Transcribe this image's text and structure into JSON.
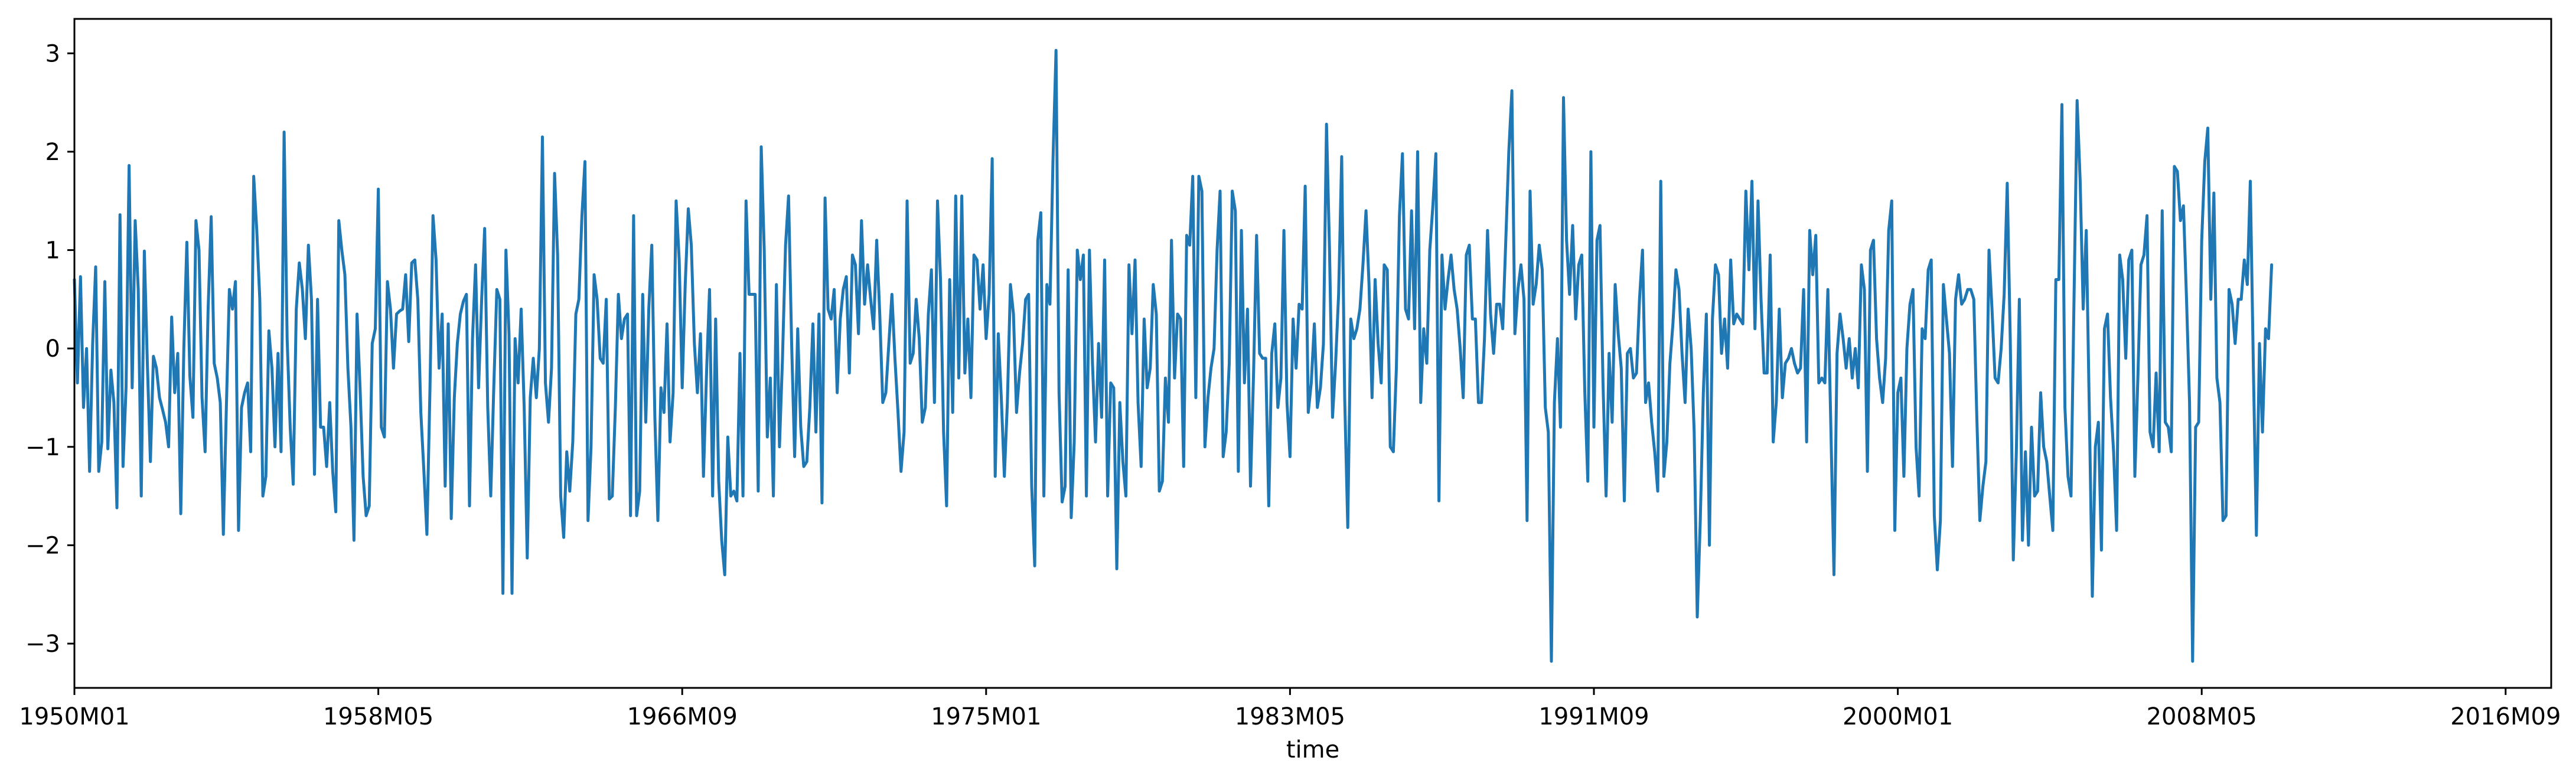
{
  "chart_data": {
    "type": "line",
    "title": "",
    "xlabel": "time",
    "ylabel": "",
    "xlim": [
      "1950M01",
      "2017M12"
    ],
    "ylim": [
      -3.45,
      3.35
    ],
    "grid": false,
    "legend": "none",
    "x_ticks": [
      "1950M01",
      "1958M05",
      "1966M09",
      "1975M01",
      "1983M05",
      "1991M09",
      "2000M01",
      "2008M05",
      "2016M09"
    ],
    "y_ticks": [
      "3",
      "2",
      "1",
      "0",
      "−1",
      "−2",
      "−3"
    ],
    "colors": {
      "line": "#1f77b4",
      "axes": "#000000",
      "background": "#ffffff"
    },
    "series": [
      {
        "frequency": "monthly",
        "start": "1950M01",
        "values": [
          0.7,
          -0.35,
          0.73,
          -0.6,
          0.0,
          -1.25,
          0.05,
          0.83,
          -1.25,
          -0.95,
          0.68,
          -1.02,
          -0.22,
          -0.55,
          -1.62,
          1.36,
          -1.2,
          -0.39,
          1.86,
          -0.4,
          1.3,
          0.6,
          -1.5,
          0.99,
          -0.15,
          -1.15,
          -0.08,
          -0.2,
          -0.5,
          -0.62,
          -0.75,
          -1.0,
          0.32,
          -0.45,
          -0.05,
          -1.68,
          0.0,
          1.08,
          -0.28,
          -0.7,
          1.3,
          1.0,
          -0.5,
          -1.05,
          0.4,
          1.34,
          -0.15,
          -0.3,
          -0.55,
          -1.89,
          -0.6,
          0.6,
          0.4,
          0.68,
          -1.85,
          -0.6,
          -0.45,
          -0.35,
          -1.05,
          1.75,
          1.2,
          0.5,
          -1.5,
          -1.3,
          0.18,
          -0.2,
          -1.0,
          -0.05,
          -1.05,
          2.2,
          0.1,
          -0.8,
          -1.38,
          0.4,
          0.87,
          0.6,
          0.1,
          1.05,
          0.5,
          -1.28,
          0.5,
          -0.8,
          -0.8,
          -1.2,
          -0.55,
          -1.25,
          -1.66,
          1.3,
          1.0,
          0.75,
          -0.2,
          -0.8,
          -1.95,
          0.35,
          -0.4,
          -1.3,
          -1.7,
          -1.6,
          0.05,
          0.2,
          1.62,
          -0.8,
          -0.9,
          0.68,
          0.4,
          -0.2,
          0.35,
          0.38,
          0.4,
          0.75,
          0.07,
          0.87,
          0.9,
          0.5,
          -0.65,
          -1.25,
          -1.89,
          -0.4,
          1.35,
          0.9,
          -0.2,
          0.35,
          -1.4,
          0.25,
          -1.73,
          -0.5,
          0.05,
          0.35,
          0.48,
          0.55,
          -1.6,
          0.1,
          0.85,
          -0.4,
          0.5,
          1.22,
          -0.6,
          -1.5,
          -0.4,
          0.6,
          0.5,
          -2.49,
          1.0,
          0.15,
          -2.49,
          0.1,
          -0.35,
          0.4,
          -0.6,
          -2.13,
          -0.5,
          -0.1,
          -0.5,
          0.0,
          2.15,
          -0.35,
          -0.75,
          -0.2,
          1.78,
          0.95,
          -1.5,
          -1.92,
          -1.05,
          -1.45,
          -0.95,
          0.35,
          0.5,
          1.35,
          1.9,
          -1.75,
          -1.0,
          0.75,
          0.5,
          -0.1,
          -0.15,
          0.5,
          -1.53,
          -1.5,
          -0.6,
          0.55,
          0.1,
          0.3,
          0.35,
          -1.7,
          1.35,
          -1.7,
          -1.45,
          0.55,
          -0.75,
          0.4,
          1.05,
          -0.7,
          -1.75,
          -0.4,
          -0.65,
          0.25,
          -0.95,
          -0.45,
          1.5,
          0.9,
          -0.4,
          0.65,
          1.42,
          1.05,
          0.05,
          -0.45,
          0.15,
          -1.3,
          -0.25,
          0.6,
          -1.5,
          0.3,
          -1.35,
          -1.95,
          -2.3,
          -0.9,
          -1.5,
          -1.45,
          -1.55,
          -0.05,
          -1.5,
          1.5,
          0.55,
          0.55,
          0.55,
          -1.45,
          2.05,
          1.0,
          -0.9,
          -0.3,
          -1.5,
          0.65,
          -1.0,
          -0.1,
          1.05,
          1.55,
          0.05,
          -1.1,
          0.2,
          -0.8,
          -1.2,
          -1.15,
          -0.6,
          0.25,
          -0.85,
          0.35,
          -1.57,
          1.53,
          0.4,
          0.3,
          0.6,
          -0.45,
          0.3,
          0.6,
          0.73,
          -0.25,
          0.95,
          0.85,
          0.15,
          1.3,
          0.45,
          0.85,
          0.5,
          0.2,
          1.1,
          0.35,
          -0.55,
          -0.45,
          0.05,
          0.55,
          -0.1,
          -0.65,
          -1.25,
          -0.85,
          1.5,
          -0.15,
          -0.05,
          0.5,
          0.1,
          -0.75,
          -0.6,
          0.35,
          0.8,
          -0.55,
          1.5,
          0.7,
          -0.85,
          -1.6,
          0.7,
          -0.65,
          1.55,
          -0.3,
          1.55,
          -0.25,
          0.3,
          -0.5,
          0.95,
          0.9,
          0.4,
          0.85,
          0.1,
          0.55,
          1.93,
          -1.3,
          0.15,
          -0.5,
          -1.3,
          -0.55,
          0.65,
          0.35,
          -0.65,
          -0.25,
          0.05,
          0.5,
          0.55,
          -1.4,
          -2.21,
          1.1,
          1.38,
          -1.5,
          0.65,
          0.45,
          1.9,
          3.03,
          -0.45,
          -1.56,
          -1.4,
          0.8,
          -1.72,
          -0.95,
          1.0,
          0.7,
          0.95,
          -1.5,
          1.0,
          -0.15,
          -0.95,
          0.05,
          -0.7,
          0.9,
          -1.5,
          -0.35,
          -0.4,
          -2.24,
          -0.55,
          -1.15,
          -1.5,
          0.85,
          0.15,
          0.9,
          -0.55,
          -1.2,
          0.3,
          -0.4,
          -0.2,
          0.65,
          0.35,
          -1.45,
          -1.35,
          -0.3,
          -0.75,
          1.1,
          -0.3,
          0.35,
          0.3,
          -1.2,
          1.15,
          1.05,
          1.75,
          -0.5,
          1.75,
          1.6,
          -1.0,
          -0.5,
          -0.2,
          0.0,
          1.0,
          1.6,
          -1.1,
          -0.85,
          -0.15,
          1.6,
          1.4,
          -1.25,
          1.2,
          -0.35,
          0.4,
          -1.4,
          -0.25,
          1.15,
          -0.05,
          -0.1,
          -0.1,
          -1.6,
          -0.05,
          0.25,
          -0.6,
          -0.3,
          1.2,
          -0.55,
          -1.1,
          0.3,
          -0.2,
          0.45,
          0.4,
          1.65,
          -0.65,
          -0.35,
          0.25,
          -0.6,
          -0.4,
          0.05,
          2.28,
          1.0,
          -0.7,
          -0.15,
          0.55,
          1.95,
          -0.5,
          -1.82,
          0.3,
          0.1,
          0.2,
          0.4,
          0.85,
          1.4,
          0.65,
          -0.5,
          0.7,
          0.05,
          -0.35,
          0.85,
          0.8,
          -1.0,
          -1.05,
          -0.2,
          1.35,
          1.98,
          0.4,
          0.3,
          1.4,
          0.2,
          2.0,
          -0.55,
          0.2,
          -0.15,
          1.0,
          1.45,
          1.98,
          -1.55,
          0.95,
          0.4,
          0.7,
          0.95,
          0.6,
          0.4,
          0.0,
          -0.5,
          0.95,
          1.05,
          0.3,
          0.3,
          -0.55,
          -0.55,
          0.1,
          1.2,
          0.35,
          -0.05,
          0.45,
          0.45,
          0.2,
          1.1,
          2.0,
          2.62,
          0.15,
          0.6,
          0.85,
          0.5,
          -1.75,
          1.6,
          0.45,
          0.65,
          1.05,
          0.8,
          -0.6,
          -0.85,
          -3.18,
          -0.55,
          0.1,
          -0.8,
          2.55,
          1.1,
          0.55,
          1.25,
          0.3,
          0.85,
          0.95,
          -0.45,
          -1.35,
          2.0,
          -0.8,
          1.1,
          1.25,
          -0.35,
          -1.5,
          -0.05,
          -0.75,
          0.65,
          0.15,
          -0.2,
          -1.55,
          -0.05,
          0.0,
          -0.3,
          -0.25,
          0.5,
          1.0,
          -0.55,
          -0.35,
          -0.75,
          -1.05,
          -1.45,
          1.7,
          -1.3,
          -0.95,
          -0.15,
          0.25,
          0.8,
          0.6,
          -0.05,
          -0.55,
          0.4,
          0.0,
          -0.85,
          -2.73,
          -1.75,
          -0.45,
          0.35,
          -2.0,
          0.3,
          0.85,
          0.75,
          -0.05,
          0.3,
          -0.2,
          0.9,
          0.25,
          0.35,
          0.3,
          0.25,
          1.6,
          0.8,
          1.7,
          0.2,
          1.5,
          0.5,
          -0.25,
          -0.25,
          0.95,
          -0.95,
          -0.55,
          0.4,
          -0.5,
          -0.15,
          -0.1,
          0.0,
          -0.15,
          -0.25,
          -0.2,
          0.6,
          -0.95,
          1.2,
          0.75,
          1.15,
          -0.35,
          -0.3,
          -0.35,
          0.6,
          -0.85,
          -2.3,
          -0.05,
          0.35,
          0.1,
          -0.2,
          0.1,
          -0.3,
          0.0,
          -0.4,
          0.85,
          0.6,
          -1.25,
          1.0,
          1.1,
          0.1,
          -0.3,
          -0.55,
          -0.1,
          1.2,
          1.5,
          -1.85,
          -0.45,
          -0.3,
          -1.3,
          0.0,
          0.45,
          0.6,
          -1.0,
          -1.5,
          0.2,
          0.1,
          0.8,
          0.9,
          -1.7,
          -2.25,
          -1.75,
          0.65,
          0.3,
          -0.05,
          -1.2,
          0.5,
          0.75,
          0.45,
          0.5,
          0.6,
          0.6,
          0.5,
          -0.7,
          -1.75,
          -1.4,
          -1.15,
          1.0,
          0.4,
          -0.3,
          -0.35,
          0.0,
          0.55,
          1.68,
          0.1,
          -2.15,
          -1.05,
          0.5,
          -1.95,
          -1.05,
          -2.0,
          -0.8,
          -1.5,
          -1.45,
          -0.45,
          -1.0,
          -1.15,
          -1.5,
          -1.85,
          0.7,
          0.7,
          2.48,
          -0.6,
          -1.3,
          -1.5,
          0.55,
          2.52,
          1.7,
          0.4,
          1.2,
          -0.6,
          -2.52,
          -1.0,
          -0.75,
          -2.05,
          0.2,
          0.35,
          -0.5,
          -1.05,
          -1.85,
          0.95,
          0.7,
          -0.1,
          0.9,
          1.0,
          -1.3,
          -0.3,
          0.85,
          0.95,
          1.35,
          -0.85,
          -1.0,
          -0.25,
          -1.05,
          1.4,
          -0.75,
          -0.8,
          -1.05,
          1.85,
          1.8,
          1.3,
          1.45,
          0.5,
          -0.55,
          -3.18,
          -0.8,
          -0.75,
          1.1,
          1.9,
          2.24,
          0.5,
          1.58,
          -0.3,
          -0.55,
          -1.75,
          -1.7,
          0.6,
          0.45,
          0.05,
          0.5,
          0.5,
          0.9,
          0.65,
          1.7,
          -0.2,
          -1.9,
          0.05,
          -0.85,
          0.2,
          0.1,
          0.85
        ]
      }
    ]
  }
}
